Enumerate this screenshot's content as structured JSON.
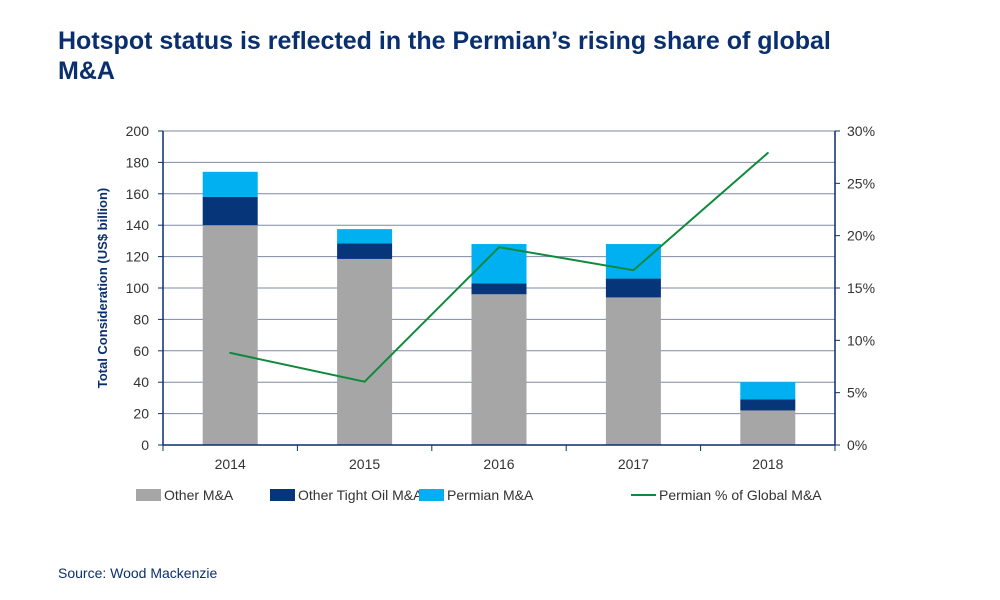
{
  "title": "Hotspot status is reflected in the Permian’s rising share of global M&A",
  "source": "Source: Wood Mackenzie",
  "colors": {
    "other": "#a6a6a6",
    "tight": "#06357a",
    "permian": "#00b0f0",
    "line": "#0f8a3c",
    "axis": "#0a2f6e",
    "grid": "#7f8aa6"
  },
  "chart_data": {
    "type": "bar",
    "stacked": true,
    "categories": [
      "2014",
      "2015",
      "2016",
      "2017",
      "2018"
    ],
    "series": [
      {
        "name": "Other M&A",
        "values": [
          140,
          118.5,
          96,
          94,
          22
        ],
        "axis": "left"
      },
      {
        "name": "Other Tight Oil M&A",
        "values": [
          18,
          10,
          7,
          12,
          7
        ],
        "axis": "left"
      },
      {
        "name": "Permian M&A",
        "values": [
          16,
          9,
          25,
          22,
          11
        ],
        "axis": "left"
      },
      {
        "name": "Permian % of Global M&A",
        "type": "line",
        "values": [
          8.8,
          6.05,
          18.9,
          16.7,
          27.9
        ],
        "axis": "right"
      }
    ],
    "ylabel": "Total Consideration (US$ billion)",
    "ylim": [
      0,
      200
    ],
    "yticks": [
      "0",
      "20",
      "40",
      "60",
      "80",
      "100",
      "120",
      "140",
      "160",
      "180",
      "200"
    ],
    "y2lim": [
      0,
      30
    ],
    "y2ticks": [
      "0%",
      "5%",
      "10%",
      "15%",
      "20%",
      "25%",
      "30%"
    ],
    "grid": true,
    "legend": "bottom"
  }
}
